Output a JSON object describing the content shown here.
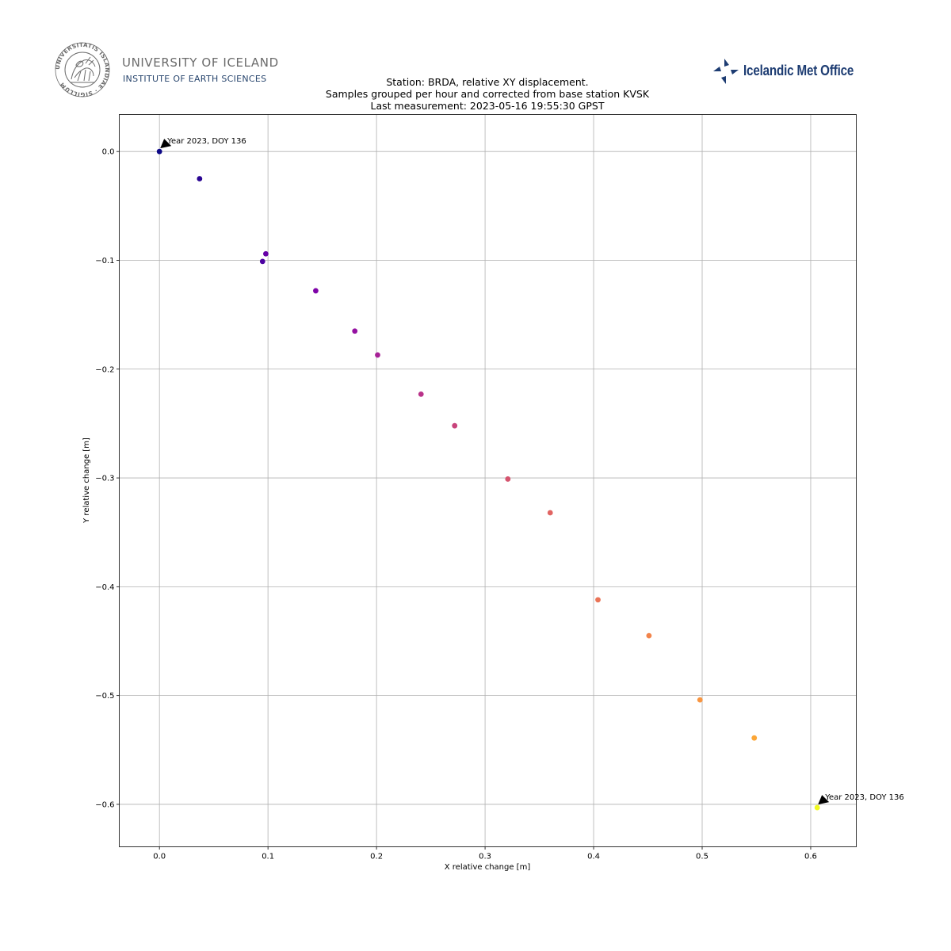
{
  "logos": {
    "left": {
      "icon": "university-seal-icon",
      "seal_text": "UNIVERSITATIS ISLANDIAE · SIGILLUM",
      "name": "UNIVERSITY OF ICELAND",
      "subtitle": "INSTITUTE OF EARTH SCIENCES",
      "name_color": "#6b6b6b",
      "subtitle_color": "#29466e"
    },
    "right": {
      "icon": "icelandic-met-office-logo-icon",
      "name": "Icelandic Met Office",
      "color": "#1d3c72"
    }
  },
  "chart_data": {
    "type": "scatter",
    "title": [
      "Station: BRDA, relative XY displacement.",
      "Samples grouped per hour and corrected from base station KVSK",
      "Last measurement: 2023-05-16 19:55:30 GPST"
    ],
    "xlabel": "X relative change [m]",
    "ylabel": "Y relative change [m]",
    "xlim": [
      -0.037,
      0.642
    ],
    "ylim": [
      -0.639,
      0.034
    ],
    "xticks": [
      0.0,
      0.1,
      0.2,
      0.3,
      0.4,
      0.5,
      0.6
    ],
    "yticks": [
      0.0,
      -0.1,
      -0.2,
      -0.3,
      -0.4,
      -0.5,
      -0.6
    ],
    "xtick_labels": [
      "0.0",
      "0.1",
      "0.2",
      "0.3",
      "0.4",
      "0.5",
      "0.6"
    ],
    "ytick_labels": [
      "0.0",
      "−0.1",
      "−0.2",
      "−0.3",
      "−0.4",
      "−0.5",
      "−0.6"
    ],
    "grid": true,
    "colormap": "plasma",
    "points": [
      {
        "x": 0.0,
        "y": 0.0,
        "color": "#0d0887"
      },
      {
        "x": 0.037,
        "y": -0.025,
        "color": "#2a0593"
      },
      {
        "x": 0.095,
        "y": -0.101,
        "color": "#4c02a1"
      },
      {
        "x": 0.098,
        "y": -0.094,
        "color": "#6600a7"
      },
      {
        "x": 0.144,
        "y": -0.128,
        "color": "#7e03a8"
      },
      {
        "x": 0.18,
        "y": -0.165,
        "color": "#9511a1"
      },
      {
        "x": 0.201,
        "y": -0.187,
        "color": "#a72197"
      },
      {
        "x": 0.241,
        "y": -0.223,
        "color": "#b93289"
      },
      {
        "x": 0.272,
        "y": -0.252,
        "color": "#c8437b"
      },
      {
        "x": 0.321,
        "y": -0.301,
        "color": "#d5546e"
      },
      {
        "x": 0.36,
        "y": -0.332,
        "color": "#e16462"
      },
      {
        "x": 0.404,
        "y": -0.412,
        "color": "#ea7457"
      },
      {
        "x": 0.451,
        "y": -0.445,
        "color": "#f2844b"
      },
      {
        "x": 0.498,
        "y": -0.504,
        "color": "#f89540"
      },
      {
        "x": 0.548,
        "y": -0.539,
        "color": "#fca636"
      },
      {
        "x": 0.606,
        "y": -0.603,
        "color": "#f0f921"
      }
    ],
    "annotations": [
      {
        "text": "Year 2023, DOY 136",
        "x": 0.0,
        "y": 0.0
      },
      {
        "text": "Year 2023, DOY 136",
        "x": 0.606,
        "y": -0.603
      }
    ]
  }
}
